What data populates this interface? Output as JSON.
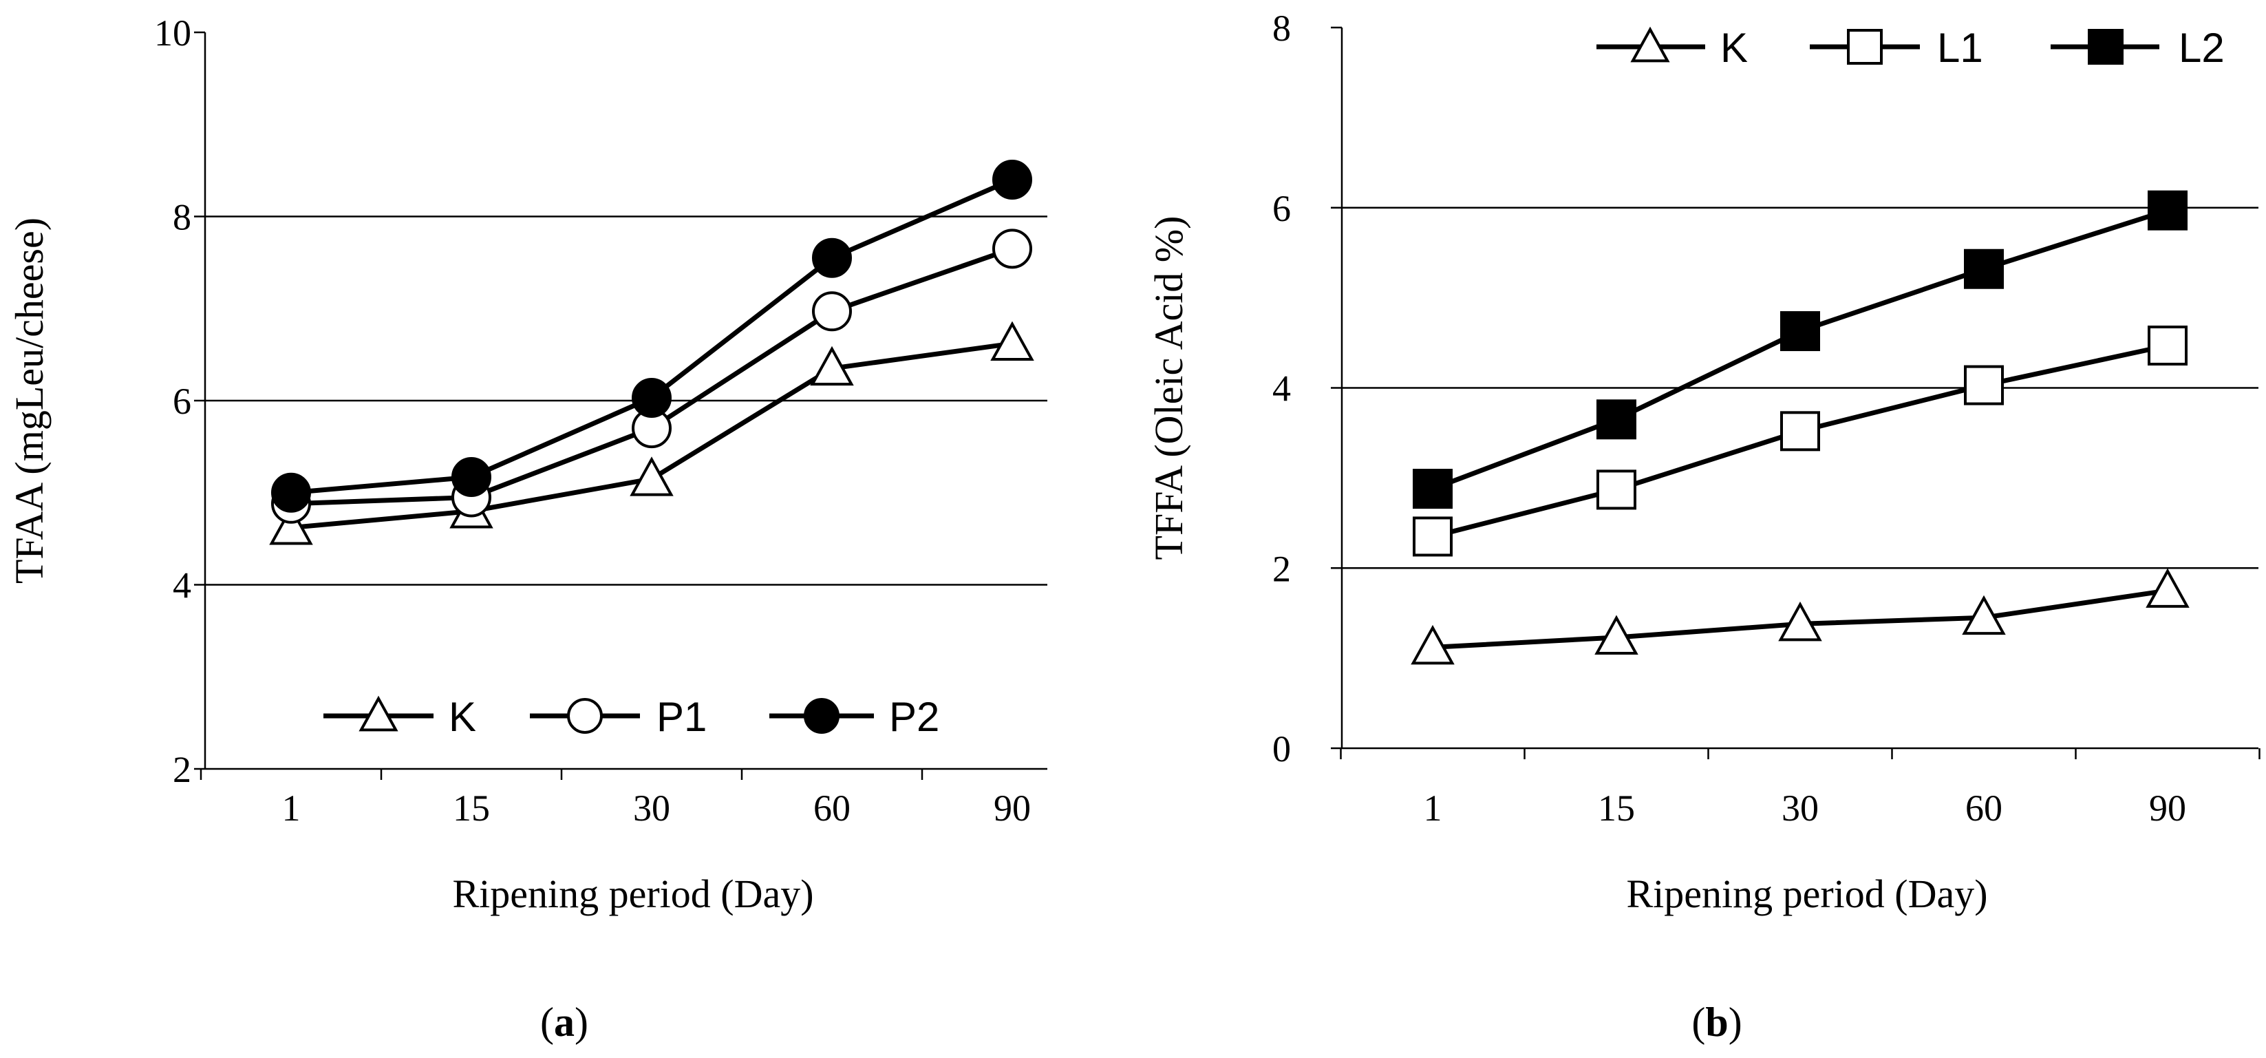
{
  "figure": {
    "panels": [
      {
        "label": "a"
      },
      {
        "label": "b"
      }
    ]
  },
  "chart_data": [
    {
      "type": "line",
      "panel_label": "a",
      "title": "",
      "xlabel": "Ripening period (Day)",
      "ylabel": "TFAA (mgLeu/cheese)",
      "categories": [
        "1",
        "15",
        "30",
        "60",
        "90"
      ],
      "ylim": [
        2,
        10
      ],
      "yticks": [
        "2",
        "4",
        "6",
        "8",
        "10"
      ],
      "grid_y": [
        4,
        6,
        8
      ],
      "legend_position": "bottom",
      "series": [
        {
          "name": "K",
          "marker": "triangle-open",
          "values": [
            4.62,
            4.8,
            5.15,
            6.35,
            6.62
          ]
        },
        {
          "name": "P1",
          "marker": "circle-open",
          "values": [
            4.88,
            4.95,
            5.7,
            6.97,
            7.65
          ]
        },
        {
          "name": "P2",
          "marker": "circle-filled",
          "values": [
            5.0,
            5.17,
            6.03,
            7.55,
            8.4
          ]
        }
      ]
    },
    {
      "type": "line",
      "panel_label": "b",
      "title": "",
      "xlabel": "Ripening period (Day)",
      "ylabel": "TFFA (Oleic Acid %)",
      "categories": [
        "1",
        "15",
        "30",
        "60",
        "90"
      ],
      "ylim": [
        0,
        8
      ],
      "yticks": [
        "0",
        "2",
        "4",
        "6",
        "8"
      ],
      "grid_y": [
        2,
        4,
        6
      ],
      "legend_position": "top",
      "series": [
        {
          "name": "K",
          "marker": "triangle-open",
          "values": [
            1.12,
            1.23,
            1.38,
            1.45,
            1.75
          ]
        },
        {
          "name": "L1",
          "marker": "square-open",
          "values": [
            2.35,
            2.87,
            3.52,
            4.03,
            4.47
          ]
        },
        {
          "name": "L2",
          "marker": "square-filled",
          "values": [
            2.88,
            3.65,
            4.63,
            5.32,
            5.97
          ]
        }
      ]
    }
  ]
}
